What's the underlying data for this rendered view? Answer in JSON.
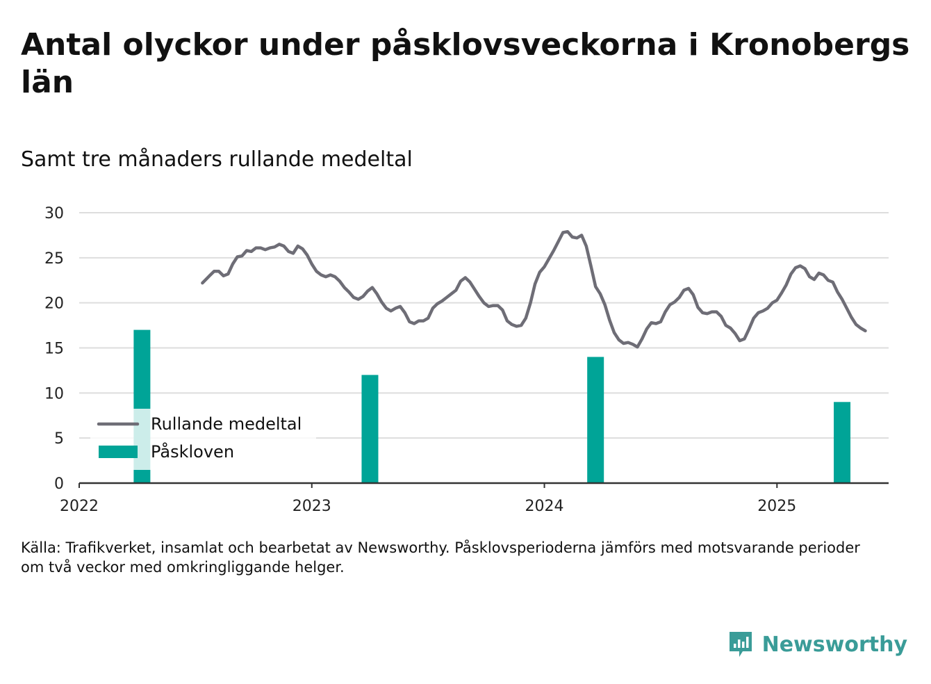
{
  "title": "Antal olyckor under påsklovsveckorna i Kronobergs län",
  "subtitle": "Samt tre månaders rullande medeltal",
  "source": {
    "line1": "Källa: Trafikverket, insamlat och bearbetat av Newsworthy. Påsklovsperioderna jämförs med motsvarande perioder",
    "line2": "om två veckor med omkringliggande helger."
  },
  "brand": {
    "name": "Newsworthy",
    "icon": "newsworthy-logo-icon",
    "color": "#3a9c98"
  },
  "colors": {
    "bar": "#00a497",
    "line": "#6e6d76",
    "grid": "#dddddd",
    "axis": "#333333"
  },
  "chart_data": {
    "type": "bar+line",
    "xlim": [
      2022.0,
      2025.48
    ],
    "ylim": [
      0,
      30
    ],
    "yticks": [
      0,
      5,
      10,
      15,
      20,
      25,
      30
    ],
    "xticks": [
      {
        "value": 2022,
        "label": "2022"
      },
      {
        "value": 2023,
        "label": "2023"
      },
      {
        "value": 2024,
        "label": "2024"
      },
      {
        "value": 2025,
        "label": "2025"
      }
    ],
    "grid": true,
    "legend": {
      "placement": "bottom-left",
      "entries": [
        {
          "name": "Rullande medeltal",
          "kind": "line"
        },
        {
          "name": "Påskloven",
          "kind": "bar"
        }
      ]
    },
    "series": [
      {
        "name": "Påskloven",
        "kind": "bar",
        "x": [
          2022.27,
          2023.25,
          2024.22,
          2025.28
        ],
        "values": [
          17,
          12,
          14,
          9
        ]
      },
      {
        "name": "Rullande medeltal",
        "kind": "line",
        "points": [
          [
            2022.53,
            22.2
          ],
          [
            2022.56,
            23.0
          ],
          [
            2022.58,
            23.5
          ],
          [
            2022.6,
            23.5
          ],
          [
            2022.62,
            23.0
          ],
          [
            2022.64,
            23.2
          ],
          [
            2022.66,
            24.3
          ],
          [
            2022.68,
            25.1
          ],
          [
            2022.7,
            25.2
          ],
          [
            2022.72,
            25.8
          ],
          [
            2022.74,
            25.7
          ],
          [
            2022.76,
            26.1
          ],
          [
            2022.78,
            26.1
          ],
          [
            2022.8,
            25.9
          ],
          [
            2022.82,
            26.1
          ],
          [
            2022.84,
            26.2
          ],
          [
            2022.86,
            26.5
          ],
          [
            2022.88,
            26.3
          ],
          [
            2022.9,
            25.7
          ],
          [
            2022.92,
            25.5
          ],
          [
            2022.94,
            26.3
          ],
          [
            2022.96,
            26.0
          ],
          [
            2022.98,
            25.3
          ],
          [
            2023.0,
            24.3
          ],
          [
            2023.02,
            23.5
          ],
          [
            2023.04,
            23.1
          ],
          [
            2023.06,
            22.9
          ],
          [
            2023.08,
            23.1
          ],
          [
            2023.1,
            22.9
          ],
          [
            2023.12,
            22.4
          ],
          [
            2023.14,
            21.7
          ],
          [
            2023.16,
            21.2
          ],
          [
            2023.18,
            20.6
          ],
          [
            2023.2,
            20.4
          ],
          [
            2023.22,
            20.7
          ],
          [
            2023.24,
            21.3
          ],
          [
            2023.26,
            21.7
          ],
          [
            2023.28,
            21.0
          ],
          [
            2023.3,
            20.1
          ],
          [
            2023.32,
            19.4
          ],
          [
            2023.34,
            19.1
          ],
          [
            2023.36,
            19.4
          ],
          [
            2023.38,
            19.6
          ],
          [
            2023.4,
            18.9
          ],
          [
            2023.42,
            17.9
          ],
          [
            2023.44,
            17.7
          ],
          [
            2023.46,
            18.0
          ],
          [
            2023.48,
            18.0
          ],
          [
            2023.5,
            18.3
          ],
          [
            2023.52,
            19.4
          ],
          [
            2023.54,
            19.9
          ],
          [
            2023.56,
            20.2
          ],
          [
            2023.58,
            20.6
          ],
          [
            2023.6,
            21.0
          ],
          [
            2023.62,
            21.4
          ],
          [
            2023.64,
            22.4
          ],
          [
            2023.66,
            22.8
          ],
          [
            2023.68,
            22.3
          ],
          [
            2023.7,
            21.5
          ],
          [
            2023.72,
            20.7
          ],
          [
            2023.74,
            20.0
          ],
          [
            2023.76,
            19.6
          ],
          [
            2023.78,
            19.7
          ],
          [
            2023.8,
            19.7
          ],
          [
            2023.82,
            19.2
          ],
          [
            2023.84,
            18.0
          ],
          [
            2023.86,
            17.6
          ],
          [
            2023.88,
            17.4
          ],
          [
            2023.9,
            17.5
          ],
          [
            2023.92,
            18.3
          ],
          [
            2023.94,
            20.0
          ],
          [
            2023.96,
            22.1
          ],
          [
            2023.98,
            23.4
          ],
          [
            2024.0,
            24.0
          ],
          [
            2024.02,
            24.9
          ],
          [
            2024.04,
            25.8
          ],
          [
            2024.06,
            26.8
          ],
          [
            2024.08,
            27.8
          ],
          [
            2024.1,
            27.9
          ],
          [
            2024.12,
            27.3
          ],
          [
            2024.14,
            27.2
          ],
          [
            2024.16,
            27.5
          ],
          [
            2024.18,
            26.3
          ],
          [
            2024.2,
            24.1
          ],
          [
            2024.22,
            21.8
          ],
          [
            2024.24,
            21.0
          ],
          [
            2024.26,
            19.8
          ],
          [
            2024.28,
            18.1
          ],
          [
            2024.3,
            16.7
          ],
          [
            2024.32,
            15.9
          ],
          [
            2024.34,
            15.5
          ],
          [
            2024.36,
            15.6
          ],
          [
            2024.38,
            15.4
          ],
          [
            2024.4,
            15.1
          ],
          [
            2024.42,
            16.0
          ],
          [
            2024.44,
            17.1
          ],
          [
            2024.46,
            17.8
          ],
          [
            2024.48,
            17.7
          ],
          [
            2024.5,
            17.9
          ],
          [
            2024.52,
            19.0
          ],
          [
            2024.54,
            19.8
          ],
          [
            2024.56,
            20.1
          ],
          [
            2024.58,
            20.6
          ],
          [
            2024.6,
            21.4
          ],
          [
            2024.62,
            21.6
          ],
          [
            2024.64,
            20.9
          ],
          [
            2024.66,
            19.5
          ],
          [
            2024.68,
            18.9
          ],
          [
            2024.7,
            18.8
          ],
          [
            2024.72,
            19.0
          ],
          [
            2024.74,
            19.0
          ],
          [
            2024.76,
            18.5
          ],
          [
            2024.78,
            17.5
          ],
          [
            2024.8,
            17.2
          ],
          [
            2024.82,
            16.6
          ],
          [
            2024.84,
            15.8
          ],
          [
            2024.86,
            16.0
          ],
          [
            2024.88,
            17.1
          ],
          [
            2024.9,
            18.3
          ],
          [
            2024.92,
            18.9
          ],
          [
            2024.94,
            19.1
          ],
          [
            2024.96,
            19.4
          ],
          [
            2024.98,
            20.0
          ],
          [
            2025.0,
            20.3
          ],
          [
            2025.02,
            21.1
          ],
          [
            2025.04,
            22.0
          ],
          [
            2025.06,
            23.2
          ],
          [
            2025.08,
            23.9
          ],
          [
            2025.1,
            24.1
          ],
          [
            2025.12,
            23.8
          ],
          [
            2025.14,
            22.9
          ],
          [
            2025.16,
            22.6
          ],
          [
            2025.18,
            23.3
          ],
          [
            2025.2,
            23.1
          ],
          [
            2025.22,
            22.5
          ],
          [
            2025.24,
            22.3
          ],
          [
            2025.26,
            21.2
          ],
          [
            2025.28,
            20.4
          ],
          [
            2025.3,
            19.4
          ],
          [
            2025.32,
            18.4
          ],
          [
            2025.34,
            17.6
          ],
          [
            2025.36,
            17.2
          ],
          [
            2025.38,
            16.9
          ]
        ]
      }
    ]
  }
}
